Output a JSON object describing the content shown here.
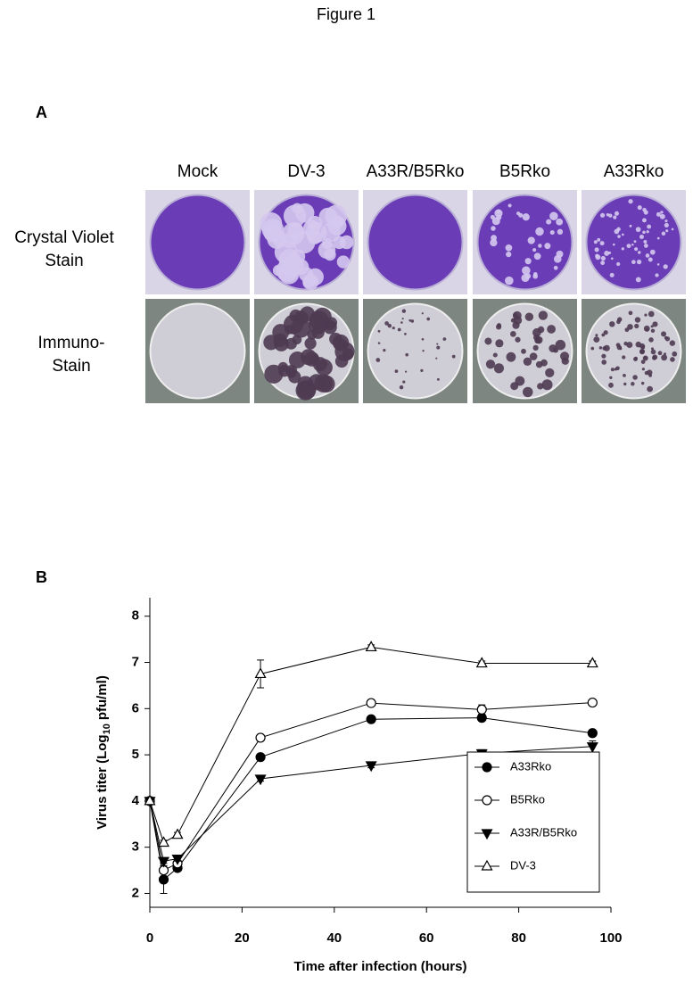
{
  "figure_title": "Figure 1",
  "panel_a": {
    "label": "A",
    "columns": [
      "Mock",
      "DV-3",
      "A33R/B5Rko",
      "B5Rko",
      "A33Rko"
    ],
    "rows": [
      [
        "Crystal Violet",
        "Stain"
      ],
      [
        "Immuno-",
        "Stain"
      ]
    ]
  },
  "chart_data": {
    "type": "line",
    "label": "B",
    "xlabel": "Time after infection (hours)",
    "ylabel": {
      "text": "Virus titer (Log",
      "sub": "10",
      "tail": "pfu/ml)"
    },
    "x": [
      0,
      3,
      6,
      24,
      48,
      72,
      96
    ],
    "xlim": [
      0,
      100
    ],
    "xticks": [
      0,
      20,
      40,
      60,
      80,
      100
    ],
    "ylim": [
      1.7,
      8.4
    ],
    "yticks": [
      2,
      3,
      4,
      5,
      6,
      7,
      8
    ],
    "legend": "lower right",
    "series": [
      {
        "name": "A33Rko",
        "color": "#000000",
        "marker": "circle",
        "filled": true,
        "values": [
          4.0,
          2.3,
          2.55,
          4.95,
          5.77,
          5.8,
          5.47
        ],
        "errors": [
          0.05,
          0.3,
          0.05,
          0.05,
          0.05,
          0.05,
          0.05
        ]
      },
      {
        "name": "B5Rko",
        "color": "#000000",
        "marker": "circle",
        "filled": false,
        "values": [
          4.0,
          2.5,
          2.65,
          5.37,
          6.12,
          5.98,
          6.13
        ],
        "errors": [
          0.05,
          0.05,
          0.05,
          0.05,
          0.05,
          0.1,
          0.05
        ]
      },
      {
        "name": "A33R/B5Rko",
        "color": "#000000",
        "marker": "triangle-down",
        "filled": true,
        "values": [
          4.0,
          2.7,
          2.75,
          4.48,
          4.77,
          5.03,
          5.18
        ],
        "errors": [
          0.05,
          0.05,
          0.05,
          0.05,
          0.05,
          0.08,
          0.12
        ]
      },
      {
        "name": "DV-3",
        "color": "#000000",
        "marker": "triangle-up",
        "filled": false,
        "values": [
          4.0,
          3.1,
          3.27,
          6.75,
          7.33,
          6.98,
          6.98
        ],
        "errors": [
          0.05,
          0.05,
          0.05,
          0.3,
          0.05,
          0.05,
          0.05
        ]
      }
    ]
  }
}
